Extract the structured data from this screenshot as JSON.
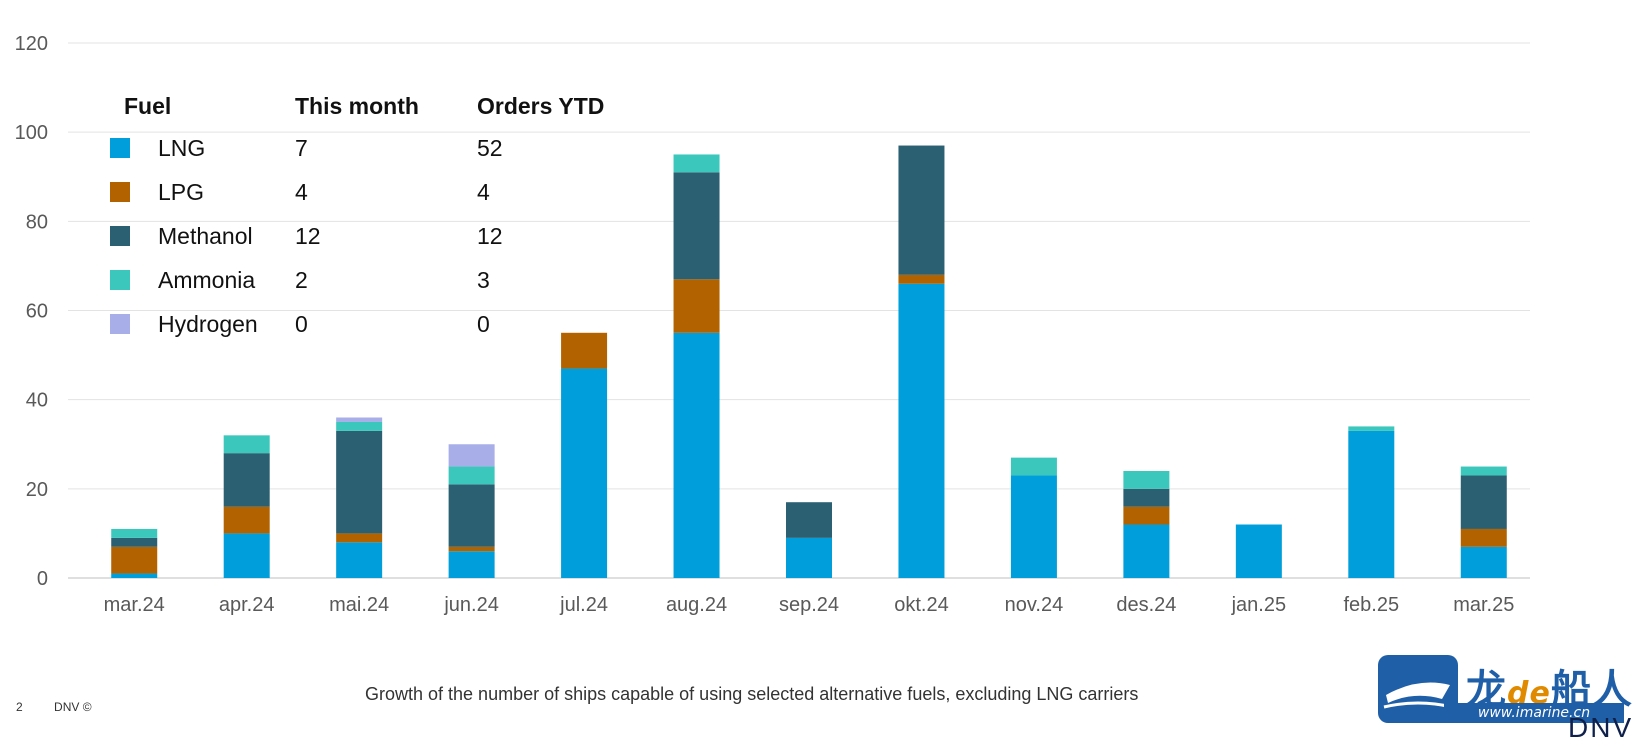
{
  "chart_data": {
    "type": "bar",
    "stacked": true,
    "title": "",
    "xlabel": "",
    "ylabel": "",
    "ylim": [
      0,
      120
    ],
    "yticks": [
      0,
      20,
      40,
      60,
      80,
      100,
      120
    ],
    "grid": true,
    "legend_position": "top-left",
    "categories": [
      "mar.24",
      "apr.24",
      "mai.24",
      "jun.24",
      "jul.24",
      "aug.24",
      "sep.24",
      "okt.24",
      "nov.24",
      "des.24",
      "jan.25",
      "feb.25",
      "mar.25"
    ],
    "series": [
      {
        "name": "LNG",
        "color": "#009fdb",
        "values": [
          1,
          10,
          8,
          6,
          47,
          55,
          9,
          66,
          23,
          12,
          12,
          33,
          7
        ]
      },
      {
        "name": "LPG",
        "color": "#b36200",
        "values": [
          6,
          6,
          2,
          1,
          8,
          12,
          0,
          2,
          0,
          4,
          0,
          0,
          4
        ]
      },
      {
        "name": "Methanol",
        "color": "#2b6073",
        "values": [
          2,
          12,
          23,
          14,
          0,
          24,
          8,
          29,
          0,
          4,
          0,
          0,
          12
        ]
      },
      {
        "name": "Ammonia",
        "color": "#3cc7bd",
        "values": [
          2,
          4,
          2,
          4,
          0,
          4,
          0,
          0,
          4,
          4,
          0,
          1,
          2
        ]
      },
      {
        "name": "Hydrogen",
        "color": "#a8aee8",
        "values": [
          0,
          0,
          1,
          5,
          0,
          0,
          0,
          0,
          0,
          0,
          0,
          0,
          0
        ]
      }
    ],
    "legend_table": {
      "headers": [
        "Fuel",
        "This month",
        "Orders YTD"
      ],
      "rows": [
        {
          "fuel": "LNG",
          "this_month": "7",
          "orders_ytd": "52"
        },
        {
          "fuel": "LPG",
          "this_month": "4",
          "orders_ytd": "4"
        },
        {
          "fuel": "Methanol",
          "this_month": "12",
          "orders_ytd": "12"
        },
        {
          "fuel": "Ammonia",
          "this_month": "2",
          "orders_ytd": "3"
        },
        {
          "fuel": "Hydrogen",
          "this_month": "0",
          "orders_ytd": "0"
        }
      ]
    },
    "caption": "Growth of the number of ships capable of using selected alternative fuels, excluding LNG carriers"
  },
  "footer": {
    "page_number": "2",
    "copyright": "DNV ©"
  },
  "watermark": {
    "text_de": "de",
    "text_url": "www.imarine.cn"
  },
  "brand": "DNV"
}
